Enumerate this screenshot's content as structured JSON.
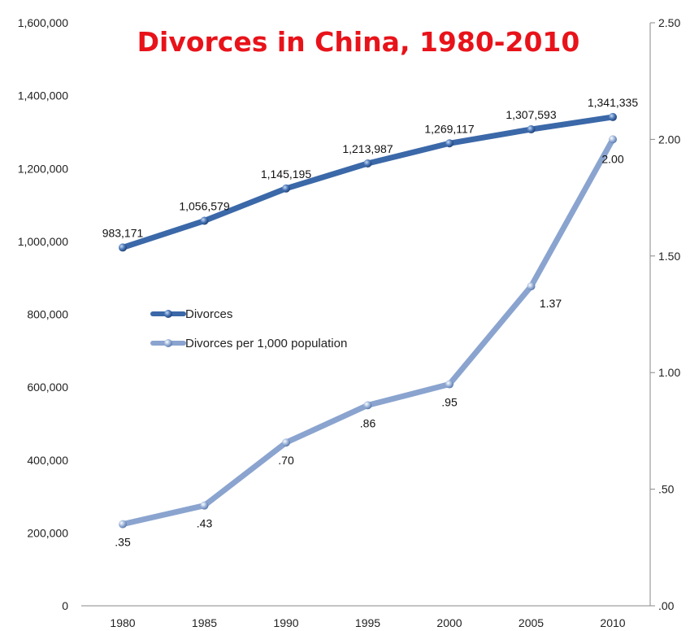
{
  "chart_data": {
    "type": "line",
    "title": "Divorces in China, 1980-2010",
    "x": [
      "1980",
      "1985",
      "1990",
      "1995",
      "2000",
      "2005",
      "2010"
    ],
    "series": [
      {
        "name": "Divorces",
        "axis": "left",
        "color": "#3b68a8",
        "values": [
          983171,
          1056579,
          1145195,
          1213987,
          1269117,
          1307593,
          1341335
        ],
        "labels": [
          "983,171",
          "1,056,579",
          "1,145,195",
          "1,213,987",
          "1,269,117",
          "1,307,593",
          "1,341,335"
        ]
      },
      {
        "name": "Divorces per 1,000 population",
        "axis": "right",
        "color": "#8aa4cf",
        "values": [
          0.35,
          0.43,
          0.7,
          0.86,
          0.95,
          1.37,
          2.0
        ],
        "labels": [
          ".35",
          ".43",
          ".70",
          ".86",
          ".95",
          "1.37",
          "2.00"
        ]
      }
    ],
    "y_left": {
      "range": [
        0,
        1600000
      ],
      "ticks": [
        0,
        200000,
        400000,
        600000,
        800000,
        1000000,
        1200000,
        1400000,
        1600000
      ],
      "tick_labels": [
        "0",
        "200,000",
        "400,000",
        "600,000",
        "800,000",
        "1,000,000",
        "1,200,000",
        "1,400,000",
        "1,600,000"
      ]
    },
    "y_right": {
      "range": [
        0,
        2.5
      ],
      "ticks": [
        0,
        0.5,
        1.0,
        1.5,
        2.0,
        2.5
      ],
      "tick_labels": [
        ".00",
        ".50",
        "1.00",
        "1.50",
        "2.00",
        "2.50"
      ]
    },
    "grid": false,
    "legend_position": "center-left"
  }
}
